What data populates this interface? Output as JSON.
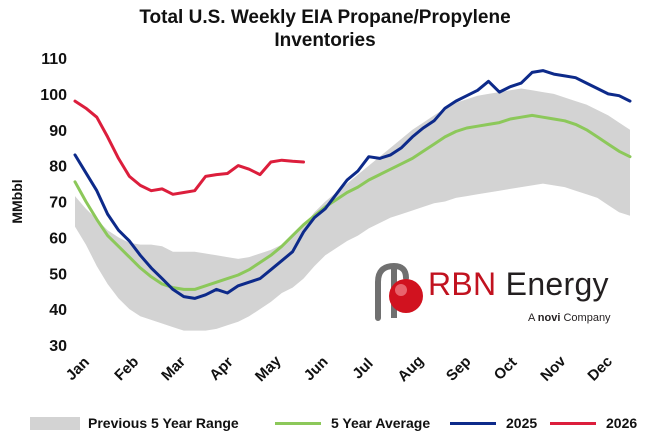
{
  "title_line1": "Total U.S. Weekly EIA Propane/Propylene",
  "title_line2": "Inventories",
  "logo": {
    "brand_prefix": "RBN",
    "brand_suffix": "Energy",
    "tagline_a": "A",
    "tagline_company": "novi",
    "tagline_rest": "Company"
  },
  "legend": {
    "range_label": "Previous 5 Year Range",
    "avg_label": "5 Year Average",
    "s2025_label": "2025",
    "s2026_label": "2026"
  },
  "colors": {
    "range": "#d3d3d3",
    "avg": "#8cc85a",
    "s2025": "#0d2a8a",
    "s2026": "#dc1e3c"
  },
  "chart_data": {
    "type": "line",
    "title": "Total U.S. Weekly EIA Propane/Propylene Inventories",
    "xlabel": "",
    "ylabel": "MMbbl",
    "ylim": [
      30,
      110
    ],
    "yticks": [
      30,
      40,
      50,
      60,
      70,
      80,
      90,
      100,
      110
    ],
    "xlim": [
      1,
      52
    ],
    "month_ticks": [
      {
        "label": "Jan",
        "week": 1
      },
      {
        "label": "Feb",
        "week": 5.5
      },
      {
        "label": "Mar",
        "week": 9.8
      },
      {
        "label": "Apr",
        "week": 14.2
      },
      {
        "label": "May",
        "week": 18.5
      },
      {
        "label": "Jun",
        "week": 22.9
      },
      {
        "label": "Jul",
        "week": 27.2
      },
      {
        "label": "Aug",
        "week": 31.6
      },
      {
        "label": "Sep",
        "week": 36
      },
      {
        "label": "Oct",
        "week": 40.3
      },
      {
        "label": "Nov",
        "week": 44.7
      },
      {
        "label": "Dec",
        "week": 49
      }
    ],
    "grid": false,
    "legend_position": "bottom",
    "series": [
      {
        "name": "Previous 5 Year Range",
        "kind": "band",
        "x": [
          1,
          2,
          3,
          4,
          5,
          6,
          7,
          8,
          9,
          10,
          11,
          12,
          13,
          14,
          15,
          16,
          17,
          18,
          19,
          20,
          21,
          22,
          23,
          24,
          25,
          26,
          27,
          28,
          29,
          30,
          31,
          32,
          33,
          34,
          35,
          36,
          37,
          38,
          39,
          40,
          41,
          42,
          43,
          44,
          45,
          46,
          47,
          48,
          49,
          50,
          51,
          52
        ],
        "high": [
          71.5,
          68.0,
          65.0,
          62.0,
          60.0,
          58.5,
          58.0,
          58.0,
          57.5,
          56.0,
          56.0,
          56.0,
          55.5,
          55.0,
          54.5,
          54.0,
          54.5,
          55.5,
          56.5,
          58.0,
          60.5,
          63.0,
          67.0,
          70.0,
          72.5,
          75.0,
          77.5,
          80.0,
          82.5,
          85.0,
          87.5,
          90.0,
          92.0,
          94.0,
          96.0,
          97.5,
          98.5,
          99.5,
          100.0,
          100.5,
          101.0,
          101.5,
          101.0,
          100.5,
          100.0,
          99.0,
          98.0,
          97.0,
          95.5,
          94.0,
          92.0,
          90.0
        ],
        "low": [
          63.0,
          58.0,
          52.0,
          47.0,
          43.0,
          40.0,
          38.0,
          37.0,
          36.0,
          35.0,
          34.0,
          34.0,
          34.0,
          34.5,
          35.5,
          36.5,
          38.0,
          40.0,
          42.0,
          44.5,
          46.0,
          48.5,
          52.0,
          55.0,
          57.0,
          59.0,
          60.5,
          62.5,
          64.0,
          65.5,
          66.5,
          67.5,
          68.5,
          69.5,
          70.0,
          71.0,
          71.5,
          72.0,
          72.5,
          73.0,
          73.5,
          74.0,
          74.5,
          75.0,
          74.5,
          74.0,
          73.0,
          72.0,
          71.0,
          69.0,
          67.0,
          66.0
        ]
      },
      {
        "name": "5 Year Average",
        "x": [
          1,
          2,
          3,
          4,
          5,
          6,
          7,
          8,
          9,
          10,
          11,
          12,
          13,
          14,
          15,
          16,
          17,
          18,
          19,
          20,
          21,
          22,
          23,
          24,
          25,
          26,
          27,
          28,
          29,
          30,
          31,
          32,
          33,
          34,
          35,
          36,
          37,
          38,
          39,
          40,
          41,
          42,
          43,
          44,
          45,
          46,
          47,
          48,
          49,
          50,
          51,
          52
        ],
        "values": [
          75.5,
          70.0,
          65.0,
          60.5,
          57.5,
          54.5,
          51.5,
          49.0,
          47.0,
          46.0,
          45.5,
          45.5,
          46.5,
          47.5,
          48.5,
          49.5,
          51.0,
          53.0,
          55.0,
          57.5,
          60.5,
          63.5,
          66.0,
          68.5,
          70.5,
          72.5,
          74.0,
          76.0,
          77.5,
          79.0,
          80.5,
          82.0,
          84.0,
          86.0,
          88.0,
          89.5,
          90.5,
          91.0,
          91.5,
          92.0,
          93.0,
          93.5,
          94.0,
          93.5,
          93.0,
          92.5,
          91.5,
          90.0,
          88.0,
          86.0,
          84.0,
          82.5
        ]
      },
      {
        "name": "2025",
        "x": [
          1,
          2,
          3,
          4,
          5,
          6,
          7,
          8,
          9,
          10,
          11,
          12,
          13,
          14,
          15,
          16,
          17,
          18,
          19,
          20,
          21,
          22,
          23,
          24,
          25,
          26,
          27,
          28,
          29,
          30,
          31,
          32,
          33,
          34,
          35,
          36,
          37,
          38,
          39,
          40,
          41,
          42,
          43,
          44,
          45,
          46,
          47,
          48,
          49,
          50,
          51,
          52
        ],
        "values": [
          83.0,
          78.0,
          73.0,
          66.5,
          62.0,
          59.0,
          55.0,
          51.5,
          48.5,
          45.5,
          43.5,
          43.0,
          44.0,
          45.5,
          44.5,
          46.5,
          47.5,
          48.5,
          51.0,
          53.5,
          56.0,
          61.5,
          65.5,
          68.0,
          72.0,
          76.0,
          78.5,
          82.5,
          82.0,
          83.0,
          85.0,
          88.0,
          90.5,
          92.5,
          96.0,
          98.0,
          99.5,
          101.0,
          103.5,
          100.5,
          102.0,
          103.0,
          106.0,
          106.5,
          105.5,
          105.0,
          104.5,
          103.0,
          101.5,
          100.0,
          99.5,
          98.0
        ]
      },
      {
        "name": "2026",
        "x": [
          1,
          2,
          3,
          4,
          5,
          6,
          7,
          8,
          9,
          10,
          11,
          12,
          13,
          14,
          15,
          16,
          17,
          18,
          19,
          20,
          21,
          22
        ],
        "values": [
          98.0,
          96.0,
          93.5,
          88.0,
          82.0,
          77.0,
          74.5,
          73.0,
          73.5,
          72.0,
          72.5,
          73.0,
          77.0,
          77.5,
          77.8,
          80.0,
          79.0,
          77.5,
          81.0,
          81.5,
          81.2,
          81.0
        ]
      }
    ]
  }
}
